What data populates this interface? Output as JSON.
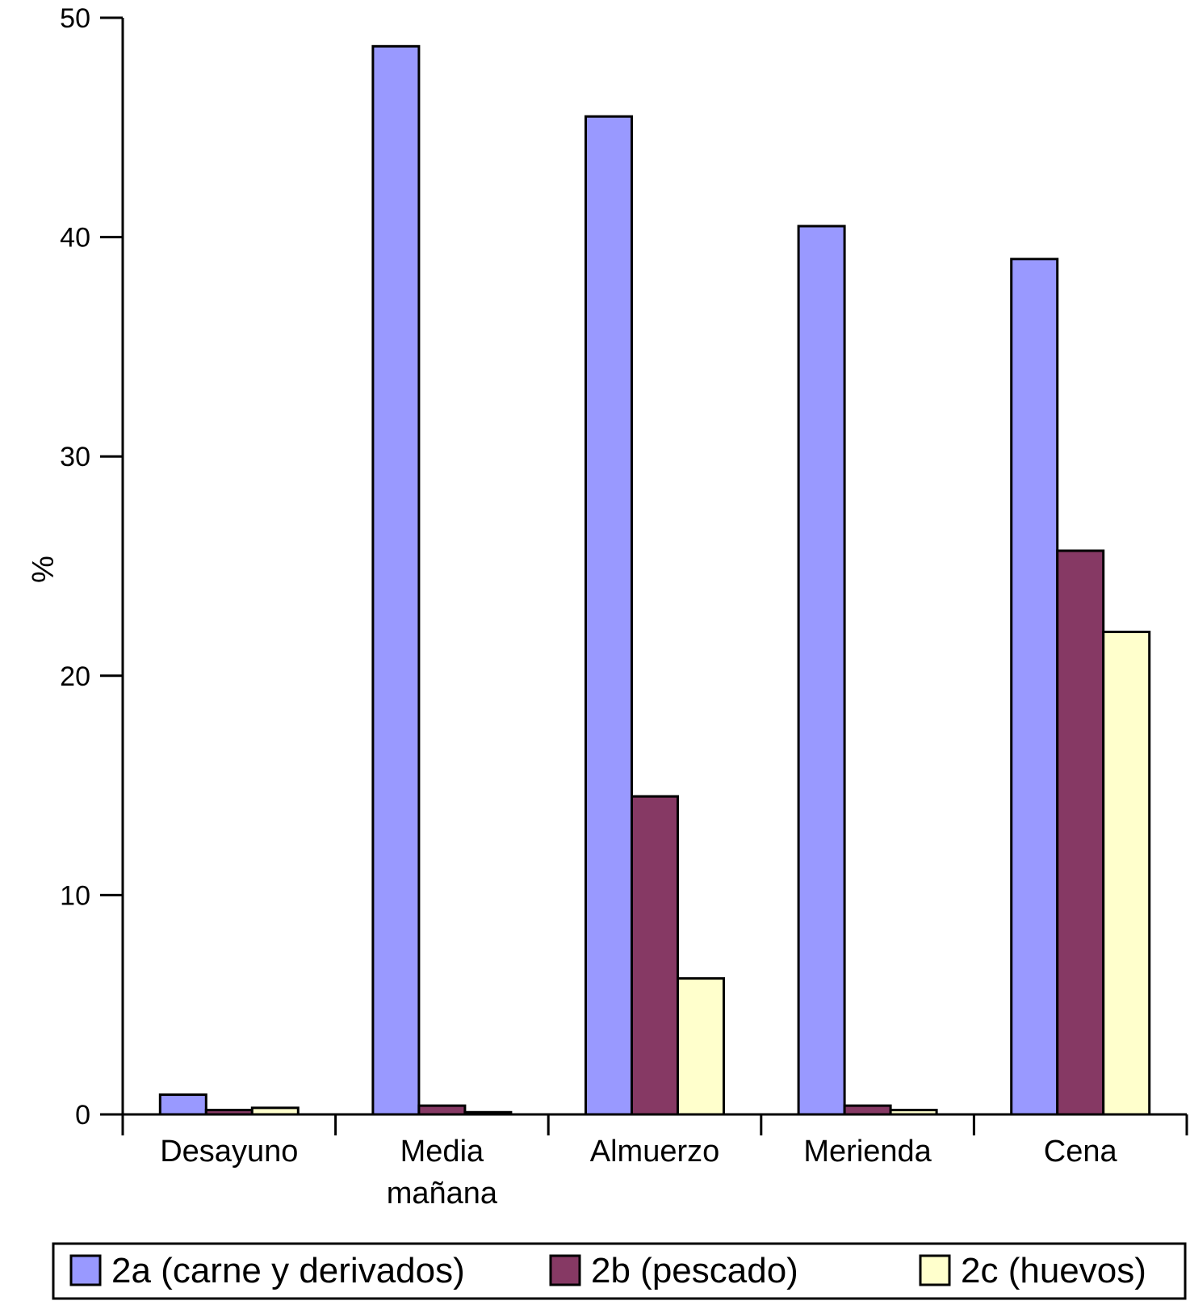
{
  "chart_data": {
    "type": "bar",
    "categories": [
      "Desayuno",
      "Media mañana",
      "Almuerzo",
      "Merienda",
      "Cena"
    ],
    "category_lines": [
      [
        "Desayuno"
      ],
      [
        "Media",
        "mañana"
      ],
      [
        "Almuerzo"
      ],
      [
        "Merienda"
      ],
      [
        "Cena"
      ]
    ],
    "series": [
      {
        "name": "2a (carne y derivados)",
        "color": "#9999ff",
        "values": [
          0.9,
          48.7,
          45.5,
          40.5,
          39.0
        ]
      },
      {
        "name": "2b (pescado)",
        "color": "#863964",
        "values": [
          0.2,
          0.4,
          14.5,
          0.4,
          25.7
        ]
      },
      {
        "name": "2c (huevos)",
        "color": "#ffffcc",
        "values": [
          0.3,
          0.1,
          6.2,
          0.2,
          22.0
        ]
      }
    ],
    "ylabel": "%",
    "ylim": [
      0,
      50
    ],
    "yticks": [
      0,
      10,
      20,
      30,
      40,
      50
    ],
    "grid": false,
    "legend_position": "bottom"
  }
}
